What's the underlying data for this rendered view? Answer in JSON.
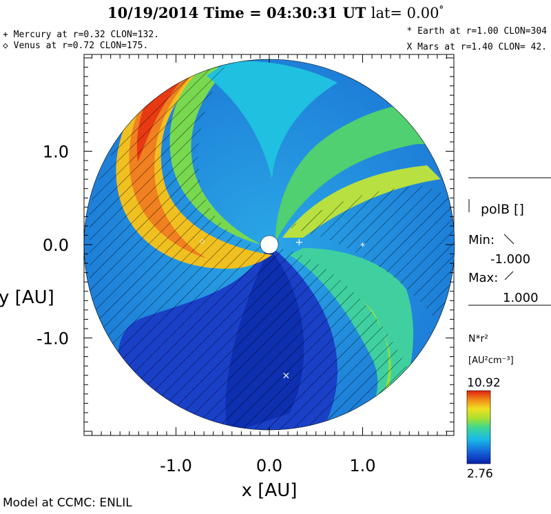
{
  "header": {
    "title": "10/19/2014 Time = 04:30:31 UT",
    "lat_label": "lat= 0.00",
    "degree": "°"
  },
  "planets": {
    "mercury": "+ Mercury at r=0.32 CLON=132.",
    "venus": "◇ Venus at r=0.72 CLON=175.",
    "earth": "* Earth at  r=1.00 CLON=304",
    "mars": "X Mars at r=1.40 CLON= 42."
  },
  "legend": {
    "polb_title": "polB []",
    "min_label": "Min:",
    "min_value": "-1.000",
    "max_label": "Max:",
    "max_value": "1.000"
  },
  "colorbar": {
    "quantity": "N*r²",
    "units": "[AU²cm⁻³]",
    "max": "10.92",
    "min": "2.76"
  },
  "footer": "Model at CCMC: ENLIL",
  "chart_data": {
    "type": "heatmap",
    "xlabel": "x [AU]",
    "ylabel": "y [AU]",
    "xlim": [
      -2,
      2
    ],
    "ylim": [
      -2,
      2
    ],
    "x_ticks": [
      "-1.0",
      "0.0",
      "1.0"
    ],
    "y_ticks": [
      "1.0",
      "0.0",
      "-1.0"
    ],
    "x_tick_values": [
      -1.0,
      0.0,
      1.0
    ],
    "y_tick_values": [
      1.0,
      0.0,
      -1.0
    ],
    "domain_radius_au": 2.0,
    "inner_boundary_au": 0.1,
    "colorbar_range": [
      2.76,
      10.92
    ],
    "bodies": [
      {
        "name": "Mercury",
        "r": 0.32,
        "x": 0.32,
        "y": 0.03,
        "marker": "+"
      },
      {
        "name": "Venus",
        "r": 0.72,
        "x": -0.72,
        "y": 0.05,
        "marker": "◇"
      },
      {
        "name": "Earth",
        "r": 1.0,
        "x": 1.0,
        "y": -0.02,
        "marker": "*"
      },
      {
        "name": "Mars",
        "r": 1.4,
        "x": 0.18,
        "y": -1.4,
        "marker": "X"
      }
    ]
  }
}
